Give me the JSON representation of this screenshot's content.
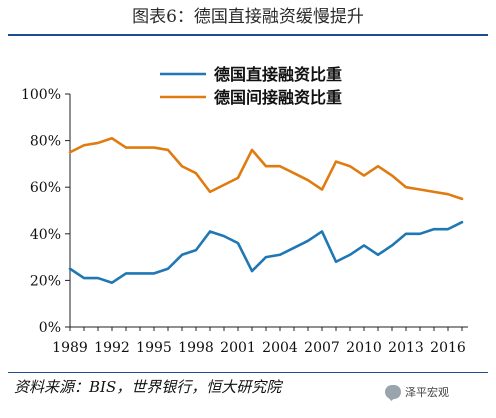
{
  "title": "图表6：德国直接融资缓慢提升",
  "source": "资料来源：BIS，世界银行，恒大研究院",
  "watermark": "泽平宏观",
  "colors": {
    "direct": "#1f77b4",
    "indirect": "#e07b10",
    "rule": "#1f4e8c"
  },
  "chart_data": {
    "type": "line",
    "title": "图表6：德国直接融资缓慢提升",
    "ylim": [
      0,
      100
    ],
    "y_ticks": [
      "0%",
      "20%",
      "40%",
      "60%",
      "80%",
      "100%"
    ],
    "x_ticks": [
      "1989",
      "1992",
      "1995",
      "1998",
      "2001",
      "2004",
      "2007",
      "2010",
      "2013",
      "2016"
    ],
    "x": [
      1989,
      1990,
      1991,
      1992,
      1993,
      1994,
      1995,
      1996,
      1997,
      1998,
      1999,
      2000,
      2001,
      2002,
      2003,
      2004,
      2005,
      2006,
      2007,
      2008,
      2009,
      2010,
      2011,
      2012,
      2013,
      2014,
      2015,
      2016,
      2017
    ],
    "legend_position": "top-right",
    "series": [
      {
        "name": "德国直接融资比重",
        "values": [
          25,
          21,
          21,
          19,
          23,
          23,
          23,
          25,
          31,
          33,
          41,
          39,
          36,
          24,
          30,
          31,
          34,
          37,
          41,
          28,
          31,
          35,
          31,
          35,
          40,
          40,
          42,
          42,
          45
        ]
      },
      {
        "name": "德国间接融资比重",
        "values": [
          75,
          78,
          79,
          81,
          77,
          77,
          77,
          76,
          69,
          66,
          58,
          61,
          64,
          76,
          69,
          69,
          66,
          63,
          59,
          71,
          69,
          65,
          69,
          65,
          60,
          59,
          58,
          57,
          55
        ]
      }
    ]
  }
}
